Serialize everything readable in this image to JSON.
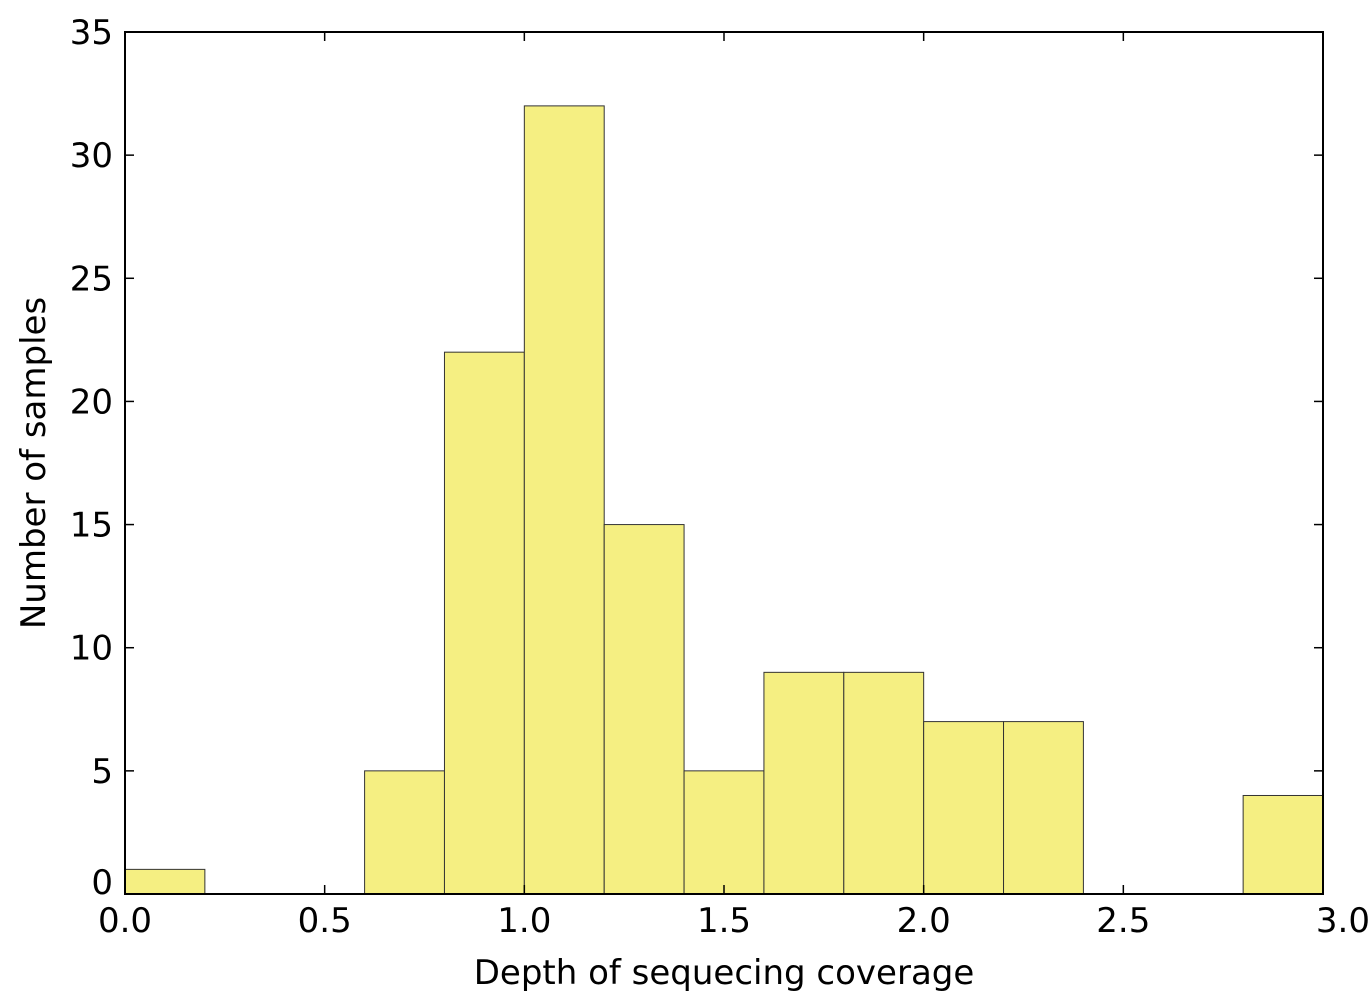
{
  "chart_data": {
    "type": "bar",
    "subtype": "histogram",
    "title": "",
    "xlabel": "Depth of sequecing coverage",
    "ylabel": "Number of samples",
    "xlim": [
      0.0,
      3.0
    ],
    "ylim": [
      0,
      35
    ],
    "xticks": [
      "0.0",
      "0.5",
      "1.0",
      "1.5",
      "2.0",
      "2.5",
      "3.0"
    ],
    "yticks": [
      "0",
      "5",
      "10",
      "15",
      "20",
      "25",
      "30",
      "35"
    ],
    "bin_edges": [
      0.0,
      0.2,
      0.4,
      0.6,
      0.8,
      1.0,
      1.2,
      1.4,
      1.6,
      1.8,
      2.0,
      2.2,
      2.4,
      2.6,
      2.8,
      3.0
    ],
    "values": [
      1,
      0,
      0,
      5,
      22,
      32,
      15,
      5,
      9,
      9,
      7,
      7,
      0,
      0,
      4
    ],
    "bar_color": "#f5ef82",
    "grid": false
  }
}
